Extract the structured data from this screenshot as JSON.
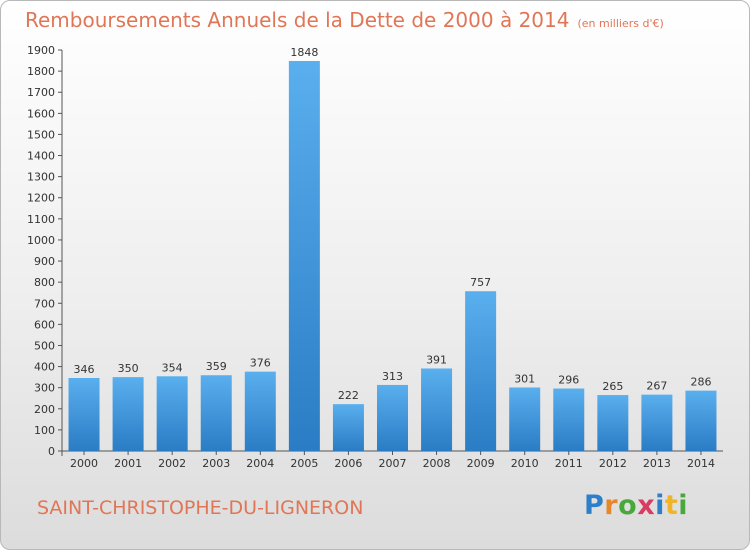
{
  "title": "Remboursements Annuels de la Dette de 2000 à 2014",
  "unit_note": "(en milliers d'€)",
  "commune": "SAINT-CHRISTOPHE-DU-LIGNERON",
  "logo": {
    "text": "Proxiti",
    "letters": [
      "P",
      "r",
      "o",
      "x",
      "i",
      "t",
      "i"
    ]
  },
  "colors": {
    "bar": "#3a8fd8",
    "text": "#e07656"
  },
  "chart_data": {
    "type": "bar",
    "title": "Remboursements Annuels de la Dette de 2000 à 2014",
    "xlabel": "",
    "ylabel": "",
    "categories": [
      "2000",
      "2001",
      "2002",
      "2003",
      "2004",
      "2005",
      "2006",
      "2007",
      "2008",
      "2009",
      "2010",
      "2011",
      "2012",
      "2013",
      "2014"
    ],
    "values": [
      346,
      350,
      354,
      359,
      376,
      1848,
      222,
      313,
      391,
      757,
      301,
      296,
      265,
      267,
      286
    ],
    "ylim": [
      0,
      1900
    ],
    "yticks": [
      0,
      100,
      200,
      300,
      400,
      500,
      600,
      700,
      800,
      900,
      1000,
      1100,
      1200,
      1300,
      1400,
      1500,
      1600,
      1700,
      1800,
      1900
    ],
    "grid": false,
    "legend": "none"
  }
}
